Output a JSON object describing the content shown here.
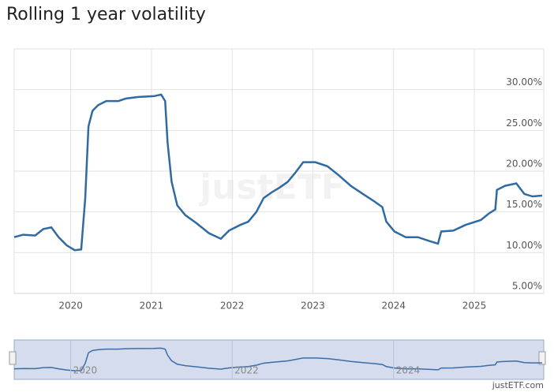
{
  "chart_data": {
    "type": "line",
    "title": "Rolling 1 year volatility",
    "watermark": "justETF",
    "credit": "justETF.com",
    "x": [
      2019.3,
      2019.41,
      2019.56,
      2019.66,
      2019.76,
      2019.85,
      2019.95,
      2020.05,
      2020.13,
      2020.18,
      2020.22,
      2020.27,
      2020.34,
      2020.44,
      2020.59,
      2020.68,
      2020.83,
      2021.03,
      2021.12,
      2021.17,
      2021.2,
      2021.25,
      2021.32,
      2021.42,
      2021.56,
      2021.71,
      2021.86,
      2021.96,
      2022.1,
      2022.2,
      2022.3,
      2022.39,
      2022.49,
      2022.59,
      2022.69,
      2022.79,
      2022.88,
      2023.03,
      2023.18,
      2023.32,
      2023.47,
      2023.62,
      2023.76,
      2023.86,
      2023.91,
      2024.01,
      2024.15,
      2024.3,
      2024.45,
      2024.55,
      2024.59,
      2024.74,
      2024.89,
      2025.08,
      2025.18,
      2025.26,
      2025.28,
      2025.38,
      2025.52,
      2025.62,
      2025.72,
      2025.84
    ],
    "values": [
      11.9,
      12.2,
      12.1,
      12.9,
      13.1,
      11.9,
      10.9,
      10.3,
      10.4,
      16.7,
      25.5,
      27.4,
      28.1,
      28.6,
      28.6,
      28.9,
      29.1,
      29.2,
      29.4,
      28.6,
      23.5,
      18.7,
      15.8,
      14.6,
      13.6,
      12.4,
      11.7,
      12.7,
      13.4,
      13.8,
      15.0,
      16.7,
      17.4,
      18.0,
      18.7,
      19.9,
      21.1,
      21.1,
      20.6,
      19.5,
      18.2,
      17.2,
      16.3,
      15.6,
      13.8,
      12.6,
      11.9,
      11.9,
      11.4,
      11.1,
      12.6,
      12.7,
      13.4,
      14.0,
      14.8,
      15.3,
      17.7,
      18.2,
      18.5,
      17.2,
      16.9,
      17.0
    ],
    "color": "#2f6aa3",
    "xlim": [
      2019.3,
      2025.86
    ],
    "xticks": [
      2020,
      2021,
      2022,
      2023,
      2024,
      2025
    ],
    "ylim": [
      5,
      35
    ],
    "yticks": [
      {
        "value": 5,
        "label": "5.00%"
      },
      {
        "value": 10,
        "label": "10.00%"
      },
      {
        "value": 15,
        "label": "15.00%"
      },
      {
        "value": 20,
        "label": "20.00%"
      },
      {
        "value": 25,
        "label": "25.00%"
      },
      {
        "value": 30,
        "label": "30.00%"
      }
    ],
    "grid": true,
    "navigator": {
      "xticks": [
        2020,
        2022,
        2024
      ]
    }
  }
}
